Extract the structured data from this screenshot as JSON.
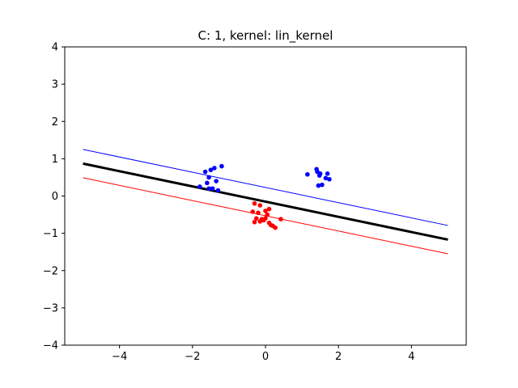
{
  "chart_data": {
    "type": "scatter",
    "title": "C: 1, kernel: lin_kernel",
    "xlabel": "",
    "ylabel": "",
    "xlim": [
      -5.5,
      5.5
    ],
    "ylim": [
      -4,
      4
    ],
    "xticks": [
      -4,
      -2,
      0,
      2,
      4
    ],
    "yticks": [
      -4,
      -3,
      -2,
      -1,
      0,
      1,
      2,
      3,
      4
    ],
    "grid": false,
    "series": [
      {
        "color": "#0000ff",
        "points": [
          [
            -1.65,
            0.65
          ],
          [
            -1.5,
            0.7
          ],
          [
            -1.4,
            0.75
          ],
          [
            -1.2,
            0.8
          ],
          [
            -1.55,
            0.5
          ],
          [
            -1.35,
            0.4
          ],
          [
            -1.6,
            0.35
          ],
          [
            -1.45,
            0.2
          ],
          [
            -1.8,
            0.25
          ],
          [
            -1.55,
            0.2
          ],
          [
            -1.3,
            0.15
          ],
          [
            1.15,
            0.58
          ],
          [
            1.4,
            0.72
          ],
          [
            1.42,
            0.65
          ],
          [
            1.5,
            0.6
          ],
          [
            1.48,
            0.55
          ],
          [
            1.7,
            0.6
          ],
          [
            1.65,
            0.48
          ],
          [
            1.75,
            0.45
          ],
          [
            1.55,
            0.3
          ],
          [
            1.45,
            0.28
          ]
        ]
      },
      {
        "color": "#ff0000",
        "points": [
          [
            -0.3,
            -0.2
          ],
          [
            -0.15,
            -0.25
          ],
          [
            0.1,
            -0.35
          ],
          [
            -0.35,
            -0.42
          ],
          [
            -0.2,
            -0.45
          ],
          [
            0.0,
            -0.4
          ],
          [
            0.05,
            -0.5
          ],
          [
            -0.25,
            -0.6
          ],
          [
            -0.1,
            -0.62
          ],
          [
            0.0,
            -0.6
          ],
          [
            -0.05,
            -0.65
          ],
          [
            -0.15,
            -0.68
          ],
          [
            -0.3,
            -0.7
          ],
          [
            0.1,
            -0.72
          ],
          [
            0.15,
            -0.78
          ],
          [
            0.2,
            -0.8
          ],
          [
            0.27,
            -0.85
          ],
          [
            0.42,
            -0.62
          ]
        ]
      }
    ],
    "lines": [
      {
        "role": "margin-positive",
        "color": "#0000ff",
        "width": 1,
        "points": [
          [
            -5,
            1.25
          ],
          [
            5,
            -0.79
          ]
        ]
      },
      {
        "role": "decision-boundary",
        "color": "#000000",
        "width": 3,
        "points": [
          [
            -5,
            0.87
          ],
          [
            5,
            -1.17
          ]
        ]
      },
      {
        "role": "margin-negative",
        "color": "#ff0000",
        "width": 1,
        "points": [
          [
            -5,
            0.49
          ],
          [
            5,
            -1.55
          ]
        ]
      }
    ]
  }
}
